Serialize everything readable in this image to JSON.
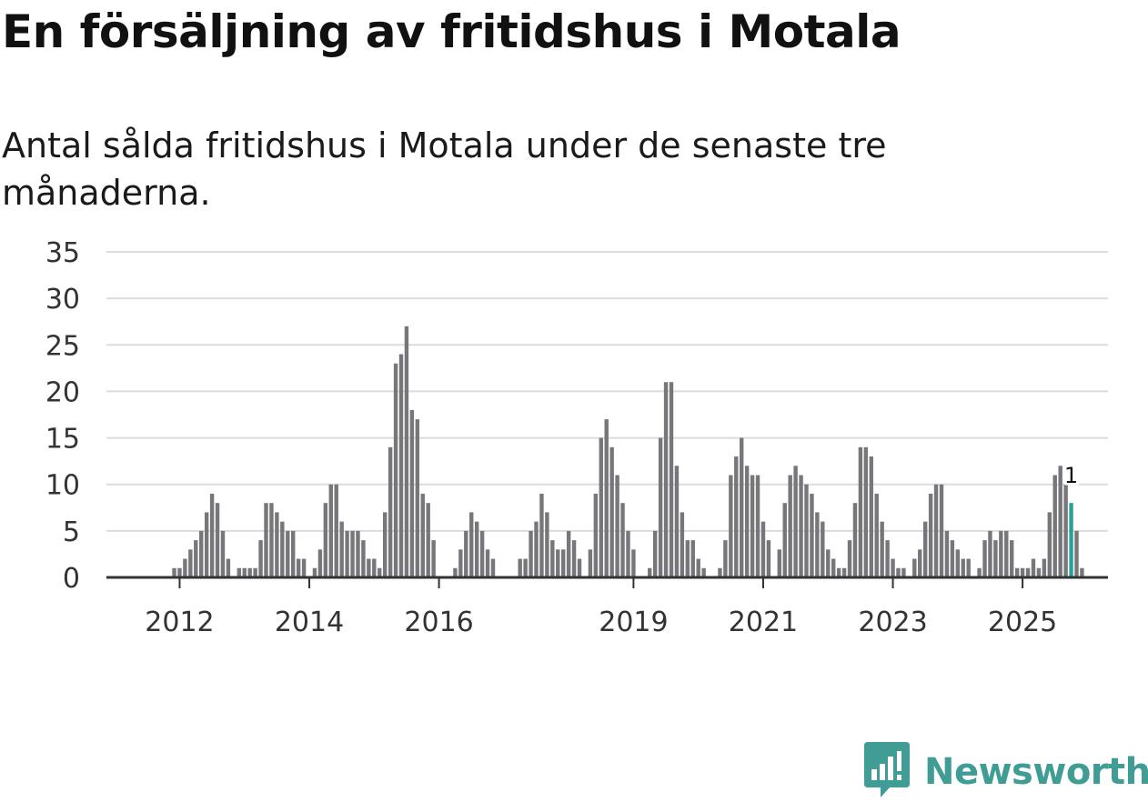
{
  "chart_data": {
    "type": "bar",
    "title": "En försäljning av fritidshus i Motala",
    "subtitle": "Antal sålda fritidshus i Motala under de senaste tre månaderna.",
    "xlabel": "",
    "ylabel": "",
    "ylim": [
      0,
      35
    ],
    "yticks": [
      0,
      5,
      10,
      15,
      20,
      25,
      30,
      35
    ],
    "xticks": [
      {
        "label": "2012",
        "index": 9
      },
      {
        "label": "2014",
        "index": 33
      },
      {
        "label": "2016",
        "index": 57
      },
      {
        "label": "2019",
        "index": 93
      },
      {
        "label": "2021",
        "index": 117
      },
      {
        "label": "2023",
        "index": 141
      },
      {
        "label": "2025",
        "index": 165
      }
    ],
    "values": [
      0,
      0,
      0,
      0,
      0,
      0,
      0,
      0,
      1,
      1,
      2,
      3,
      4,
      5,
      7,
      9,
      8,
      5,
      2,
      0,
      1,
      1,
      1,
      1,
      4,
      8,
      8,
      7,
      6,
      5,
      5,
      2,
      2,
      0,
      1,
      3,
      8,
      10,
      10,
      6,
      5,
      5,
      5,
      4,
      2,
      2,
      1,
      7,
      14,
      23,
      24,
      27,
      18,
      17,
      9,
      8,
      4,
      0,
      0,
      0,
      1,
      3,
      5,
      7,
      6,
      5,
      3,
      2,
      0,
      0,
      0,
      0,
      2,
      2,
      5,
      6,
      9,
      7,
      4,
      3,
      3,
      5,
      4,
      2,
      0,
      3,
      9,
      15,
      17,
      14,
      11,
      8,
      5,
      3,
      0,
      0,
      1,
      5,
      15,
      21,
      21,
      12,
      7,
      4,
      4,
      2,
      1,
      0,
      0,
      1,
      4,
      11,
      13,
      15,
      12,
      11,
      11,
      6,
      4,
      0,
      3,
      8,
      11,
      12,
      11,
      10,
      9,
      7,
      6,
      3,
      2,
      1,
      1,
      4,
      8,
      14,
      14,
      13,
      9,
      6,
      4,
      2,
      1,
      1,
      0,
      2,
      3,
      6,
      9,
      10,
      10,
      5,
      4,
      3,
      2,
      2,
      0,
      1,
      4,
      5,
      4,
      5,
      5,
      4,
      1,
      1,
      1,
      2,
      1,
      2,
      7,
      11,
      12,
      10,
      8,
      5,
      1
    ],
    "highlight_index": 174,
    "highlight_label": "1",
    "bar_color": "#77767b",
    "highlight_color": "#2aa198",
    "grid": true
  },
  "brand": {
    "name": "Newsworthy",
    "logo_icon": "newsworthy-logo-icon",
    "color": "#3f9d96"
  }
}
